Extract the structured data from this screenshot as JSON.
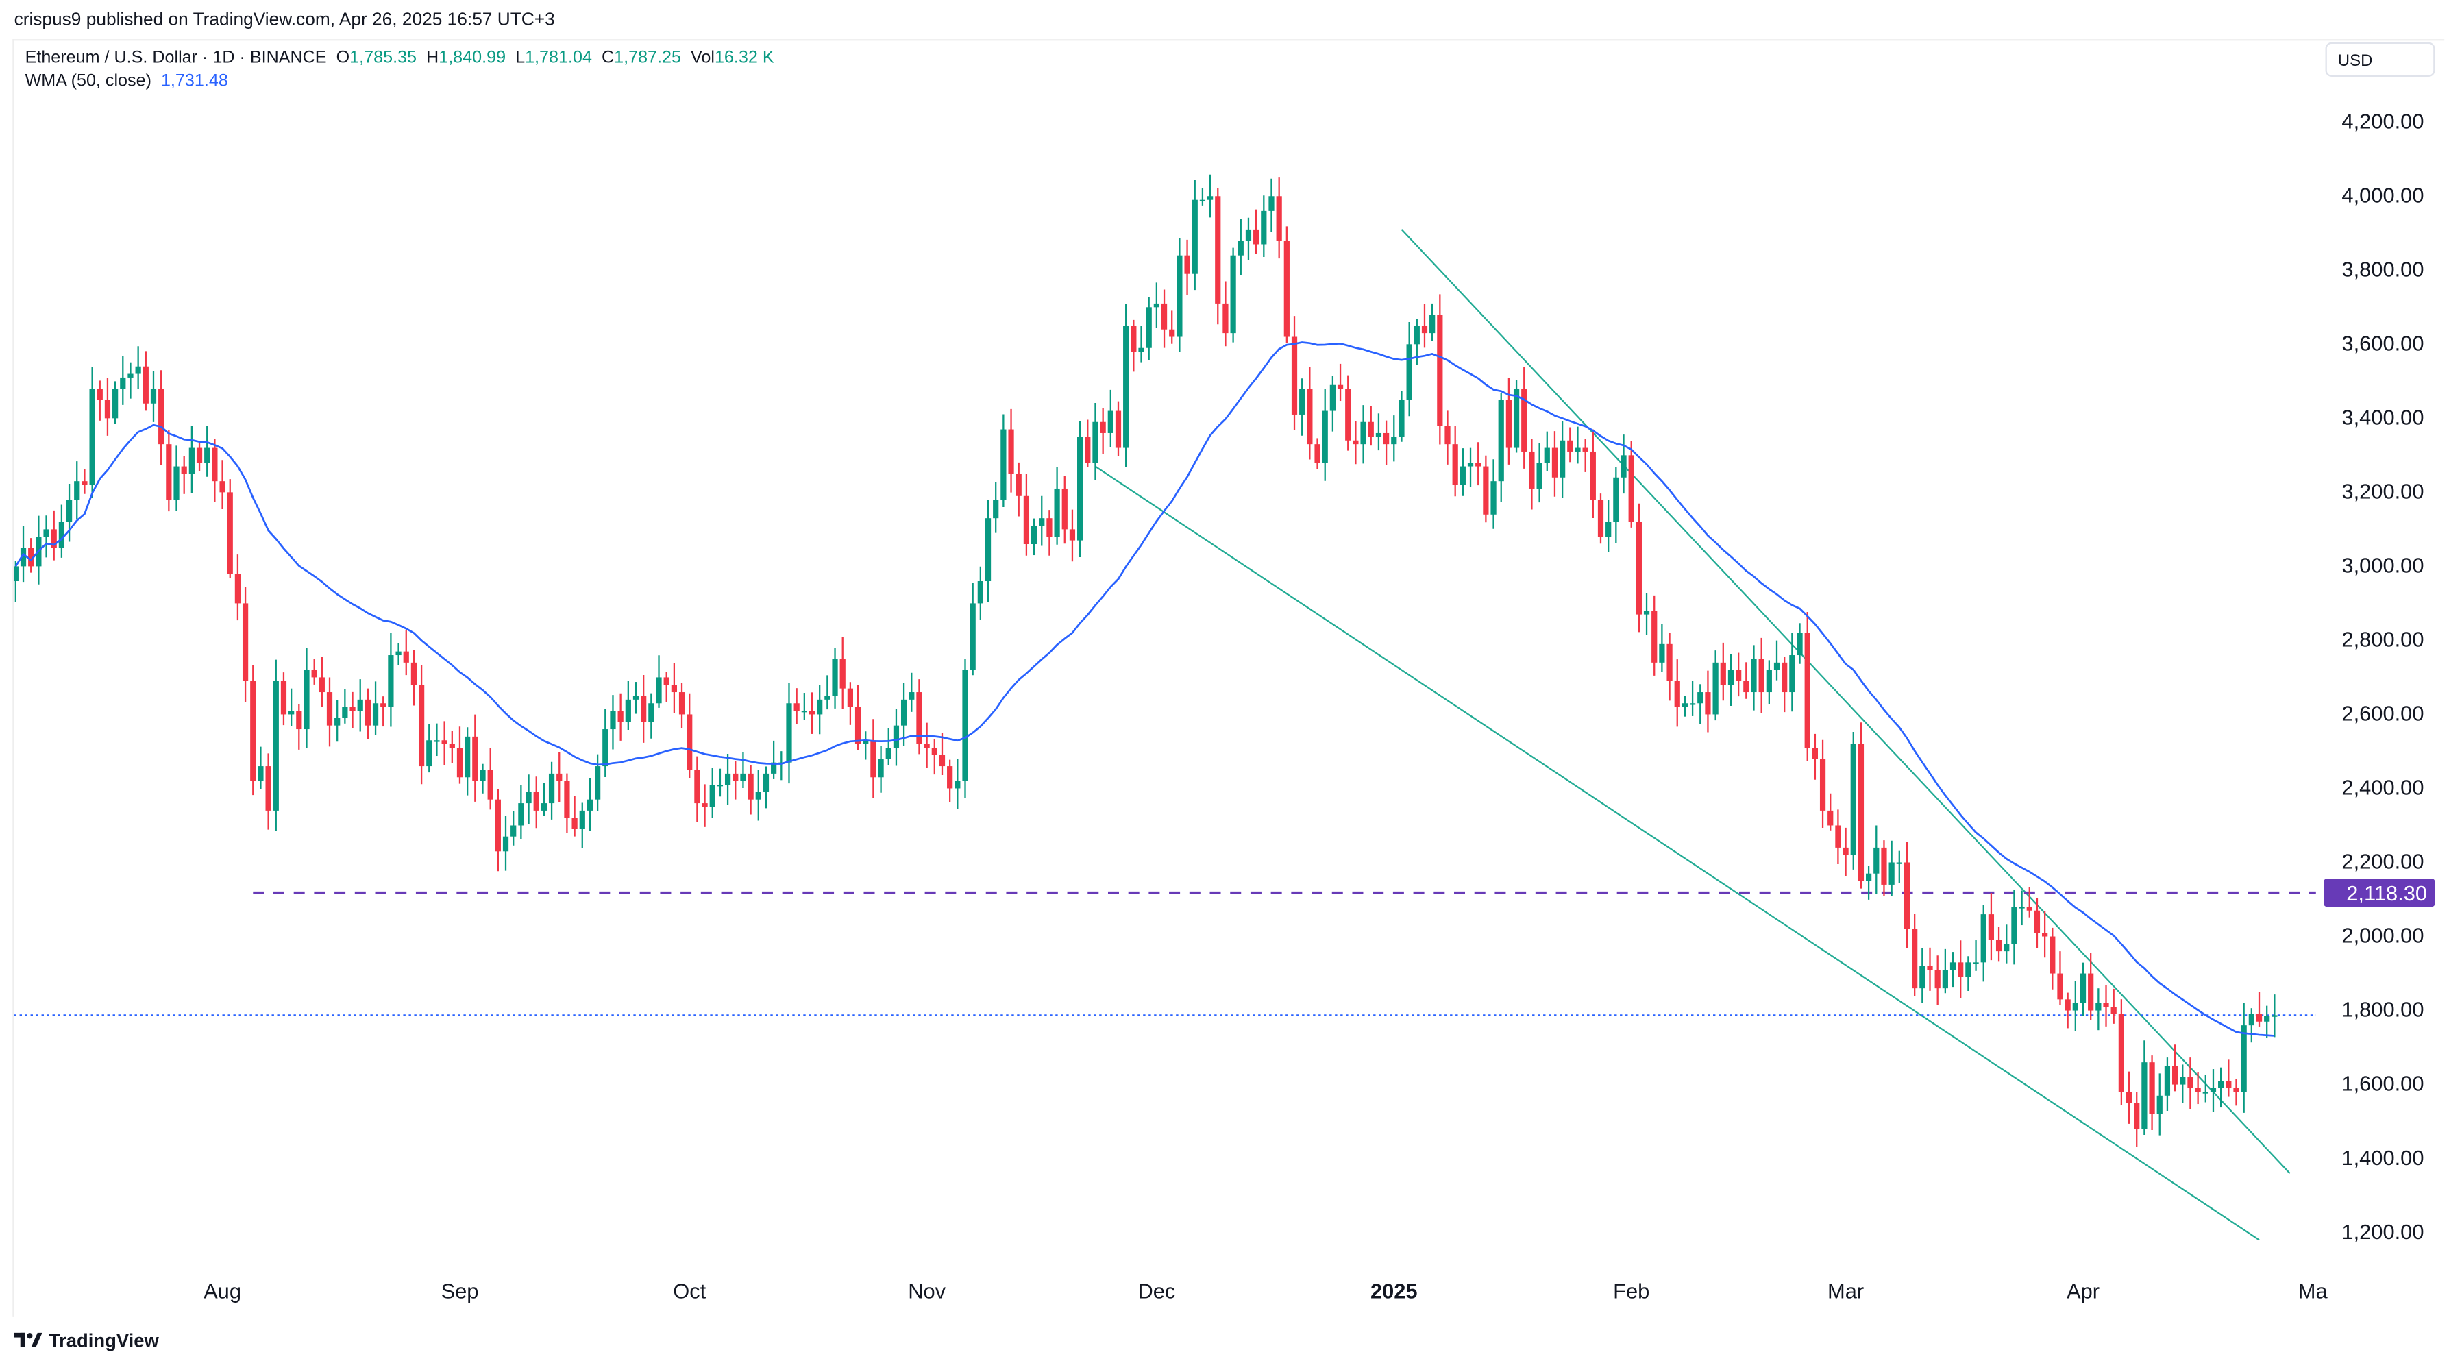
{
  "publisher_line": "crispus9 published on TradingView.com, Apr 26, 2025 16:57 UTC+3",
  "legend": {
    "symbol": "Ethereum / U.S. Dollar · 1D · BINANCE",
    "o_label": "O",
    "o": "1,785.35",
    "h_label": "H",
    "h": "1,840.99",
    "l_label": "L",
    "l": "1,781.04",
    "c_label": "C",
    "c": "1,787.25",
    "vol_label": "Vol",
    "vol": "16.32 K",
    "indicator": "WMA (50, close)",
    "indicator_value": "1,731.48"
  },
  "currency": "USD",
  "logo_text": "TradingView",
  "colors": {
    "up": "#089981",
    "down": "#f23645",
    "wma": "#2962ff",
    "support": "#673ab7",
    "trendline": "#22ab94"
  },
  "chart_data": {
    "type": "candlestick",
    "title": "Ethereum / U.S. Dollar · 1D · BINANCE",
    "start_date": "2024-07-05",
    "ylim": [
      1100,
      4350
    ],
    "y_ticks": [
      1200,
      1400,
      1600,
      1800,
      2000,
      2200,
      2400,
      2600,
      2800,
      3000,
      3200,
      3400,
      3600,
      3800,
      4000,
      4200
    ],
    "y_tick_labels": [
      "1,200.00",
      "1,400.00",
      "1,600.00",
      "1,800.00",
      "2,000.00",
      "2,200.00",
      "2,400.00",
      "2,600.00",
      "2,800.00",
      "3,000.00",
      "3,200.00",
      "3,400.00",
      "3,600.00",
      "3,800.00",
      "4,000.00",
      "4,200.00"
    ],
    "x_ticks": [
      {
        "date": "2024-08-01",
        "label": "Aug"
      },
      {
        "date": "2024-09-01",
        "label": "Sep"
      },
      {
        "date": "2024-10-01",
        "label": "Oct"
      },
      {
        "date": "2024-11-01",
        "label": "Nov"
      },
      {
        "date": "2024-12-01",
        "label": "Dec"
      },
      {
        "date": "2025-01-01",
        "label": "2025",
        "bold": true
      },
      {
        "date": "2025-02-01",
        "label": "Feb"
      },
      {
        "date": "2025-03-01",
        "label": "Mar"
      },
      {
        "date": "2025-04-01",
        "label": "Apr"
      },
      {
        "date": "2025-05-01",
        "label": "Ma"
      }
    ],
    "closes": [
      3000,
      3050,
      3000,
      3080,
      3100,
      3050,
      3120,
      3180,
      3230,
      3220,
      3480,
      3450,
      3400,
      3480,
      3510,
      3520,
      3540,
      3440,
      3480,
      3330,
      3180,
      3270,
      3250,
      3320,
      3280,
      3320,
      3230,
      3200,
      2980,
      2900,
      2690,
      2420,
      2460,
      2340,
      2690,
      2600,
      2610,
      2560,
      2720,
      2700,
      2660,
      2570,
      2590,
      2620,
      2610,
      2640,
      2570,
      2630,
      2620,
      2760,
      2770,
      2740,
      2680,
      2460,
      2530,
      2530,
      2520,
      2510,
      2430,
      2540,
      2420,
      2450,
      2370,
      2230,
      2270,
      2300,
      2360,
      2390,
      2340,
      2360,
      2440,
      2420,
      2320,
      2290,
      2340,
      2370,
      2460,
      2560,
      2610,
      2580,
      2640,
      2650,
      2580,
      2630,
      2700,
      2680,
      2660,
      2600,
      2450,
      2360,
      2350,
      2410,
      2410,
      2440,
      2420,
      2440,
      2370,
      2390,
      2440,
      2470,
      2470,
      2630,
      2610,
      2610,
      2600,
      2640,
      2650,
      2750,
      2670,
      2620,
      2520,
      2530,
      2430,
      2480,
      2510,
      2570,
      2640,
      2660,
      2520,
      2510,
      2490,
      2460,
      2400,
      2420,
      2720,
      2900,
      2960,
      3130,
      3180,
      3370,
      3250,
      3190,
      3060,
      3110,
      3130,
      3080,
      3210,
      3100,
      3070,
      3350,
      3280,
      3390,
      3360,
      3420,
      3320,
      3650,
      3580,
      3590,
      3700,
      3710,
      3640,
      3620,
      3840,
      3790,
      3990,
      3990,
      4000,
      3710,
      3630,
      3840,
      3880,
      3910,
      3870,
      3960,
      4000,
      3880,
      3620,
      3410,
      3480,
      3330,
      3280,
      3420,
      3490,
      3480,
      3340,
      3330,
      3390,
      3350,
      3360,
      3330,
      3350,
      3450,
      3600,
      3650,
      3630,
      3680,
      3380,
      3330,
      3220,
      3270,
      3280,
      3270,
      3140,
      3230,
      3450,
      3320,
      3480,
      3310,
      3210,
      3280,
      3320,
      3240,
      3340,
      3310,
      3320,
      3310,
      3180,
      3080,
      3120,
      3240,
      3300,
      3120,
      2870,
      2880,
      2740,
      2790,
      2690,
      2620,
      2630,
      2630,
      2660,
      2600,
      2740,
      2680,
      2720,
      2690,
      2660,
      2750,
      2660,
      2720,
      2740,
      2660,
      2760,
      2820,
      2510,
      2480,
      2340,
      2300,
      2240,
      2220,
      2520,
      2150,
      2170,
      2240,
      2140,
      2200,
      2200,
      2020,
      1860,
      1920,
      1910,
      1860,
      1910,
      1930,
      1890,
      1930,
      1930,
      2060,
      1990,
      1960,
      1980,
      2080,
      2080,
      2070,
      2010,
      2000,
      1900,
      1830,
      1800,
      1820,
      1900,
      1800,
      1820,
      1810,
      1790,
      1580,
      1550,
      1480,
      1660,
      1520,
      1570,
      1650,
      1600,
      1620,
      1590,
      1580,
      1580,
      1590,
      1610,
      1590,
      1580,
      1760,
      1790,
      1770,
      1785,
      1787.25
    ],
    "indicator": {
      "name": "WMA (50, close)",
      "period": 50,
      "last": 1731.48
    },
    "support_line": {
      "price": 2118.3,
      "label": "2,118.30",
      "from": "2024-08-05"
    },
    "last_price": 1787.25,
    "trendlines": [
      {
        "from": {
          "date": "2024-11-23",
          "price": 3270
        },
        "to": {
          "date": "2025-04-24",
          "price": 1180
        }
      },
      {
        "from": {
          "date": "2025-01-02",
          "price": 3910
        },
        "to": {
          "date": "2025-04-28",
          "price": 1360
        }
      }
    ]
  }
}
